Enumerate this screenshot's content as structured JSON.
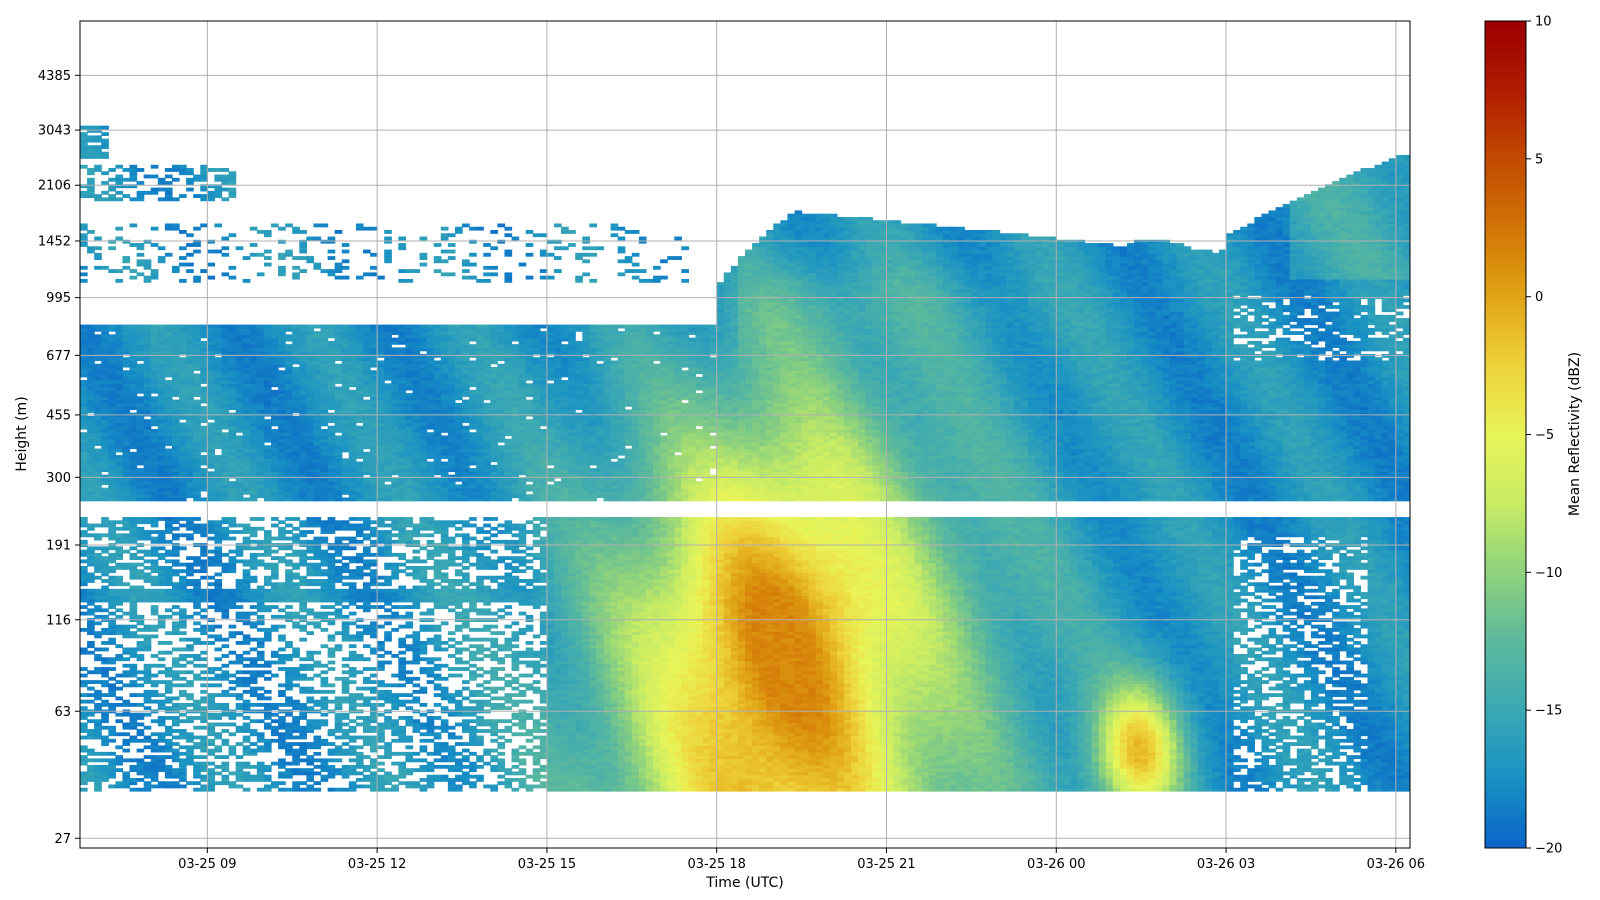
{
  "chart_data": {
    "type": "heatmap",
    "title": "",
    "xlabel": "Time (UTC)",
    "ylabel": "Height (m)",
    "x_range": [
      "03-25 06:45",
      "03-26 06:15"
    ],
    "x_ticks": [
      "03-25 09",
      "03-25 12",
      "03-25 15",
      "03-25 18",
      "03-25 21",
      "03-26 00",
      "03-26 03",
      "03-26 06"
    ],
    "y_scale": "log",
    "y_ticks": [
      "27",
      "63",
      "116",
      "191",
      "300",
      "455",
      "677",
      "995",
      "1452",
      "2106",
      "3043",
      "4385"
    ],
    "grid": true,
    "colorbar": {
      "label": "Mean Reflectivity (dBZ)",
      "range": [
        -20,
        10
      ],
      "ticks": [
        "10",
        "5",
        "0",
        "−5",
        "−10",
        "−15",
        "−20"
      ],
      "colormap": [
        "#0a64c8",
        "#1891c4",
        "#3aa8b4",
        "#5cb99c",
        "#8ed27c",
        "#c8ec64",
        "#e8f458",
        "#eed23a",
        "#e0a414",
        "#d27406",
        "#c24a00",
        "#b01c00",
        "#9c0000"
      ]
    },
    "features": [
      {
        "name": "lowest range gates, 03-25 06:45–03-26 06:15",
        "height_m": [
          37,
          256
        ],
        "reflectivity_dbz": [
          -17,
          0
        ]
      },
      {
        "name": "data gap",
        "height_m": [
          256,
          226
        ]
      },
      {
        "name": "boundary layer echo layer",
        "height_m": [
          256,
          830
        ],
        "reflectivity_dbz": [
          -18,
          -1
        ]
      },
      {
        "name": "cloud layer up to ~1800 m",
        "time": [
          "03-25 19:00",
          "03-25 23:00"
        ],
        "reflectivity_dbz": [
          -18,
          -9
        ]
      },
      {
        "name": "max echo near 03-25 18:00–20:00",
        "height_m": [
          40,
          300
        ],
        "reflectivity_dbz": -1
      },
      {
        "name": "secondary echo 03-26 01:00–02:30",
        "height_m": [
          40,
          75
        ],
        "reflectivity_dbz": -2
      }
    ]
  }
}
